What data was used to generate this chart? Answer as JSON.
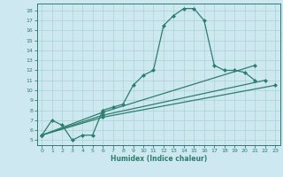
{
  "xlabel": "Humidex (Indice chaleur)",
  "bg_color": "#cde8f0",
  "line_color": "#2e7d6e",
  "grid_color": "#a8d4d0",
  "xlim": [
    -0.5,
    23.5
  ],
  "ylim": [
    4.5,
    18.7
  ],
  "xticks": [
    0,
    1,
    2,
    3,
    4,
    5,
    6,
    7,
    8,
    9,
    10,
    11,
    12,
    13,
    14,
    15,
    16,
    17,
    18,
    19,
    20,
    21,
    22,
    23
  ],
  "yticks": [
    5,
    6,
    7,
    8,
    9,
    10,
    11,
    12,
    13,
    14,
    15,
    16,
    17,
    18
  ],
  "main_x": [
    0,
    1,
    2,
    3,
    4,
    5,
    6,
    7,
    8,
    9,
    10,
    11,
    12,
    13,
    14,
    15,
    16,
    17,
    18,
    19,
    20,
    21
  ],
  "main_y": [
    5.5,
    7.0,
    6.5,
    5.0,
    5.5,
    5.5,
    8.0,
    8.3,
    8.6,
    10.5,
    11.5,
    12.0,
    16.5,
    17.5,
    18.2,
    18.2,
    17.0,
    12.5,
    12.0,
    12.0,
    11.8,
    11.0
  ],
  "line1_x": [
    0,
    6,
    21
  ],
  "line1_y": [
    5.5,
    7.8,
    12.5
  ],
  "line2_x": [
    0,
    6,
    22
  ],
  "line2_y": [
    5.5,
    7.5,
    11.0
  ],
  "line3_x": [
    0,
    6,
    23
  ],
  "line3_y": [
    5.5,
    7.3,
    10.5
  ]
}
